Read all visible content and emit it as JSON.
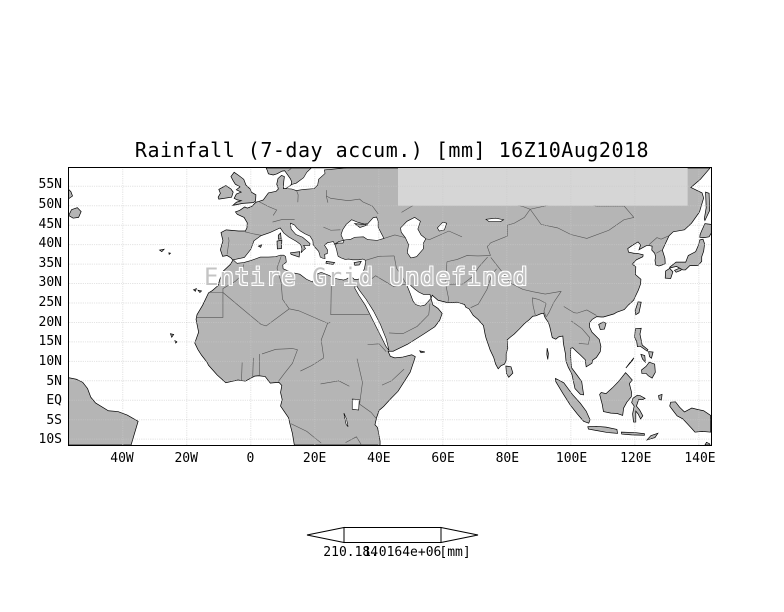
{
  "title": "Rainfall (7-day accum.) [mm] 16Z10Aug2018",
  "overlay_message": "Entire Grid Undefined",
  "axes": {
    "y_ticks": [
      "55N",
      "50N",
      "45N",
      "40N",
      "35N",
      "30N",
      "25N",
      "20N",
      "15N",
      "10N",
      "5N",
      "EQ",
      "5S",
      "10S"
    ],
    "x_ticks": [
      "40W",
      "20W",
      "0",
      "20E",
      "40E",
      "60E",
      "80E",
      "100E",
      "120E",
      "140E"
    ]
  },
  "colorbar": {
    "min_label": "210.184",
    "max_label": "1.0164e+06",
    "units_label": "[mm]"
  },
  "colors": {
    "land": "#b5b5b5",
    "ocean": "#ffffff",
    "undefined_band": "#d6d6d6",
    "coastline": "#000000",
    "country_border": "#555555",
    "grid_dots": "#c9c9c9",
    "undefined_text": "#c4c4c4"
  },
  "chart_data": {
    "type": "heatmap",
    "title": "Rainfall (7-day accum.) [mm] 16Z10Aug2018",
    "variable": "Rainfall (7-day accum.)",
    "units": "mm",
    "valid_time": "16Z10Aug2018",
    "x_ticks": [
      "40W",
      "20W",
      "0",
      "20E",
      "40E",
      "60E",
      "80E",
      "100E",
      "120E",
      "140E"
    ],
    "y_ticks": [
      "55N",
      "50N",
      "45N",
      "40N",
      "35N",
      "30N",
      "25N",
      "20N",
      "15N",
      "10N",
      "5N",
      "EQ",
      "5S",
      "10S"
    ],
    "lon_range_deg": [
      -57,
      144
    ],
    "lat_range_deg": [
      -11.5,
      59.7
    ],
    "values": null,
    "status_annotation": "Entire Grid Undefined",
    "colorbar_labels": [
      "210.184",
      "1.0164e+06",
      "[mm]"
    ],
    "grid": "dotted",
    "basemap": "gray landmasses, white ocean"
  }
}
